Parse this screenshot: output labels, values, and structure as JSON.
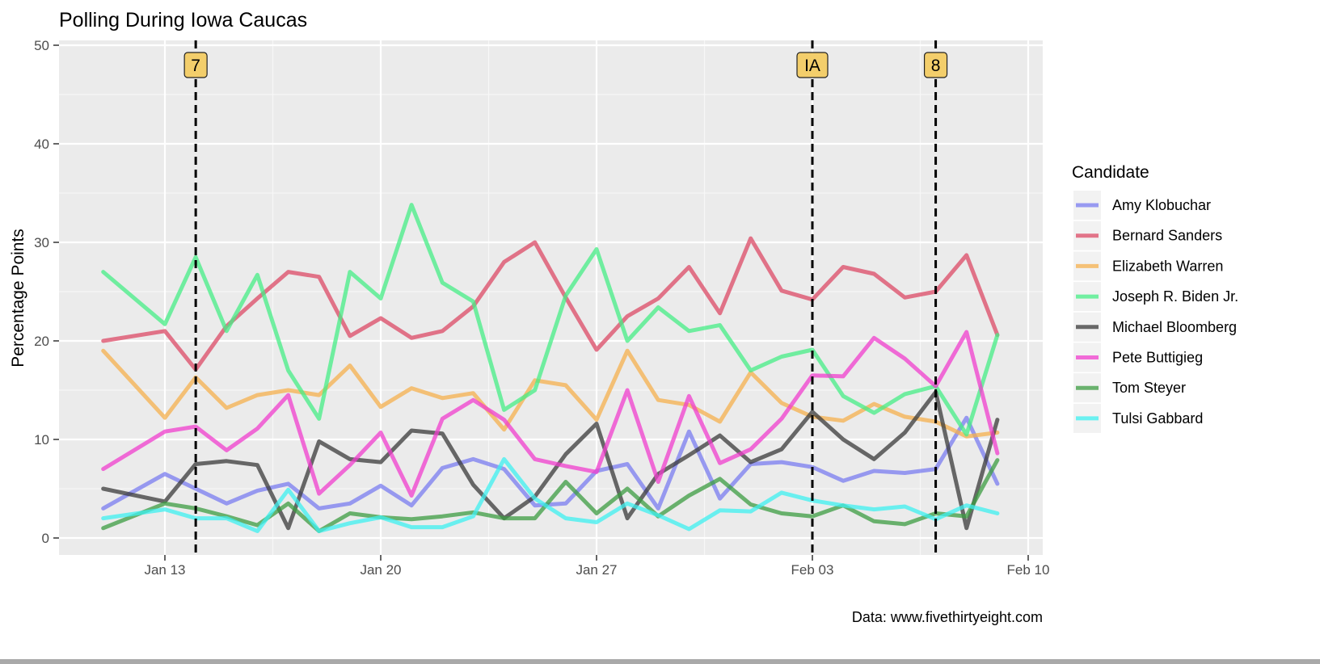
{
  "chart_data": {
    "type": "line",
    "title": "Polling During Iowa Caucas",
    "ylabel": "Percentage Points",
    "xlabel": "",
    "caption": "Data: www.fivethirtyeight.com",
    "grid": true,
    "legend_position": "right",
    "legend_title": "Candidate",
    "ylim": [
      0,
      50
    ],
    "y_ticks": [
      0,
      10,
      20,
      30,
      40,
      50
    ],
    "xlim": [
      "2020-01-08",
      "2020-02-10"
    ],
    "x_ticks": [
      {
        "date": "2020-01-13",
        "label": "Jan 13"
      },
      {
        "date": "2020-01-20",
        "label": "Jan 20"
      },
      {
        "date": "2020-01-27",
        "label": "Jan 27"
      },
      {
        "date": "2020-02-03",
        "label": "Feb 03"
      },
      {
        "date": "2020-02-10",
        "label": "Feb 10"
      }
    ],
    "events": [
      {
        "date": "2020-01-14",
        "label": "7"
      },
      {
        "date": "2020-02-03",
        "label": "IA"
      },
      {
        "date": "2020-02-07",
        "label": "8"
      }
    ],
    "x": [
      "2020-01-11",
      "2020-01-13",
      "2020-01-14",
      "2020-01-15",
      "2020-01-16",
      "2020-01-17",
      "2020-01-18",
      "2020-01-19",
      "2020-01-20",
      "2020-01-21",
      "2020-01-22",
      "2020-01-23",
      "2020-01-24",
      "2020-01-25",
      "2020-01-26",
      "2020-01-27",
      "2020-01-28",
      "2020-01-29",
      "2020-01-30",
      "2020-01-31",
      "2020-02-01",
      "2020-02-02",
      "2020-02-03",
      "2020-02-04",
      "2020-02-05",
      "2020-02-06",
      "2020-02-07",
      "2020-02-08",
      "2020-02-09"
    ],
    "series": [
      {
        "name": "Amy Klobuchar",
        "color": "#7a7cf0",
        "values": [
          3,
          6.5,
          5,
          3.5,
          4.8,
          5.5,
          3,
          3.5,
          5.3,
          3.3,
          7.1,
          8,
          7,
          3.3,
          3.5,
          6.8,
          7.5,
          3,
          10.8,
          4,
          7.5,
          7.7,
          7.2,
          5.8,
          6.8,
          6.6,
          7,
          12.2,
          5.5
        ]
      },
      {
        "name": "Bernard Sanders",
        "color": "#dc4a66",
        "values": [
          20,
          21,
          17.1,
          21.5,
          24.3,
          27,
          26.5,
          20.5,
          22.3,
          20.3,
          21,
          23.5,
          28,
          30,
          24.4,
          19.1,
          22.5,
          24.3,
          27.5,
          22.8,
          30.4,
          25.1,
          24.2,
          27.5,
          26.8,
          24.4,
          25,
          28.7,
          20.6
        ]
      },
      {
        "name": "Elizabeth Warren",
        "color": "#f6b04e",
        "values": [
          19,
          12.2,
          16.3,
          13.2,
          14.5,
          15,
          14.5,
          17.5,
          13.3,
          15.2,
          14.2,
          14.7,
          11,
          16,
          15.5,
          12,
          19,
          14,
          13.5,
          11.8,
          16.8,
          13.7,
          12.3,
          11.9,
          13.6,
          12.3,
          11.8,
          10.3,
          10.7
        ]
      },
      {
        "name": "Joseph R. Biden Jr.",
        "color": "#45ee86",
        "values": [
          27,
          21.7,
          28.5,
          21,
          26.7,
          17,
          12.1,
          27,
          24.3,
          33.8,
          25.9,
          24,
          13,
          15,
          24.6,
          29.3,
          20,
          23.4,
          21,
          21.6,
          17,
          18.4,
          19.1,
          14.4,
          12.7,
          14.6,
          15.4,
          10.5,
          20.6
        ]
      },
      {
        "name": "Michael Bloomberg",
        "color": "#3a3a3a",
        "values": [
          5,
          3.7,
          7.5,
          7.8,
          7.4,
          1,
          9.8,
          8,
          7.7,
          10.9,
          10.6,
          5.4,
          2,
          4.2,
          8.5,
          11.6,
          2,
          6.5,
          8.4,
          10.4,
          7.7,
          9,
          12.8,
          10,
          8,
          10.7,
          14.8,
          1,
          12
        ]
      },
      {
        "name": "Pete Buttigieg",
        "color": "#f03ecd",
        "values": [
          7,
          10.8,
          11.3,
          8.9,
          11.1,
          14.5,
          4.5,
          7.4,
          10.7,
          4.3,
          12.1,
          14,
          12,
          8,
          7.3,
          6.7,
          15,
          5.7,
          14.4,
          7.6,
          9,
          12.1,
          16.5,
          16.4,
          20.3,
          18.2,
          15.4,
          20.9,
          8.6
        ]
      },
      {
        "name": "Tom Steyer",
        "color": "#3c9c42",
        "values": [
          1,
          3.5,
          3,
          2.2,
          1.3,
          3.5,
          0.7,
          2.5,
          2.1,
          1.9,
          2.2,
          2.6,
          2,
          2,
          5.7,
          2.5,
          5,
          2.2,
          4.3,
          6,
          3.4,
          2.5,
          2.2,
          3.3,
          1.7,
          1.4,
          2.5,
          2.2,
          7.9
        ]
      },
      {
        "name": "Tulsi Gabbard",
        "color": "#3ef0f0",
        "values": [
          2,
          2.9,
          2,
          2,
          0.7,
          4.9,
          0.7,
          1.5,
          2.1,
          1.1,
          1.1,
          2.2,
          8,
          4,
          2,
          1.6,
          3.5,
          2.3,
          0.9,
          2.8,
          2.7,
          4.6,
          3.8,
          3.3,
          2.9,
          3.2,
          1.9,
          3.3,
          2.5
        ]
      }
    ]
  }
}
